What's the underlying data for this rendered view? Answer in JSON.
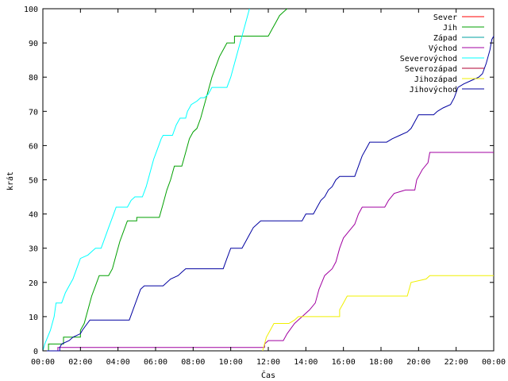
{
  "chart_data": {
    "type": "line",
    "title": "",
    "xlabel": "Čas",
    "ylabel": "krát",
    "xlim": [
      0,
      24
    ],
    "ylim": [
      0,
      100
    ],
    "x_ticks": [
      0,
      2,
      4,
      6,
      8,
      10,
      12,
      14,
      16,
      18,
      20,
      22,
      24
    ],
    "x_tick_labels": [
      "00:00",
      "02:00",
      "04:00",
      "06:00",
      "08:00",
      "10:00",
      "12:00",
      "14:00",
      "16:00",
      "18:00",
      "20:00",
      "22:00",
      "00:00"
    ],
    "y_ticks": [
      0,
      10,
      20,
      30,
      40,
      50,
      60,
      70,
      80,
      90,
      100
    ],
    "y_tick_labels": [
      "0",
      "10",
      "20",
      "30",
      "40",
      "50",
      "60",
      "70",
      "80",
      "90",
      "100"
    ],
    "grid": false,
    "legend_position": "top-right",
    "series": [
      {
        "name": "Sever",
        "color": "#ff0000",
        "points": []
      },
      {
        "name": "Jih",
        "color": "#00a000",
        "points": [
          [
            0,
            0
          ],
          [
            0.3,
            0
          ],
          [
            0.3,
            2
          ],
          [
            1.1,
            2
          ],
          [
            1.1,
            4
          ],
          [
            2.0,
            4
          ],
          [
            2.0,
            6
          ],
          [
            2.2,
            8
          ],
          [
            2.4,
            12
          ],
          [
            2.6,
            16
          ],
          [
            2.8,
            19
          ],
          [
            3.0,
            22
          ],
          [
            3.5,
            22
          ],
          [
            3.7,
            24
          ],
          [
            3.9,
            28
          ],
          [
            4.1,
            32
          ],
          [
            4.3,
            35
          ],
          [
            4.5,
            38
          ],
          [
            5.0,
            38
          ],
          [
            5.0,
            39
          ],
          [
            6.2,
            39
          ],
          [
            6.4,
            43
          ],
          [
            6.6,
            47
          ],
          [
            6.8,
            50
          ],
          [
            7.0,
            54
          ],
          [
            7.4,
            54
          ],
          [
            7.6,
            58
          ],
          [
            7.8,
            62
          ],
          [
            8.0,
            64
          ],
          [
            8.2,
            65
          ],
          [
            8.4,
            68
          ],
          [
            8.6,
            72
          ],
          [
            8.8,
            76
          ],
          [
            9.0,
            80
          ],
          [
            9.2,
            83
          ],
          [
            9.4,
            86
          ],
          [
            9.6,
            88
          ],
          [
            9.8,
            90
          ],
          [
            10.2,
            90
          ],
          [
            10.2,
            92
          ],
          [
            12.0,
            92
          ],
          [
            12.2,
            94
          ],
          [
            12.4,
            96
          ],
          [
            12.6,
            98
          ],
          [
            12.8,
            99
          ],
          [
            13.0,
            100
          ]
        ]
      },
      {
        "name": "Západ",
        "color": "#00a0a0",
        "points": []
      },
      {
        "name": "Východ",
        "color": "#a000a0",
        "points": [
          [
            0,
            0
          ],
          [
            0.8,
            0
          ],
          [
            0.8,
            1
          ],
          [
            11.8,
            1
          ],
          [
            11.8,
            2
          ],
          [
            12.0,
            3
          ],
          [
            12.8,
            3
          ],
          [
            13.0,
            5
          ],
          [
            13.4,
            8
          ],
          [
            13.8,
            10
          ],
          [
            14.2,
            12
          ],
          [
            14.5,
            14
          ],
          [
            14.7,
            18
          ],
          [
            15.0,
            22
          ],
          [
            15.4,
            24
          ],
          [
            15.6,
            26
          ],
          [
            15.8,
            30
          ],
          [
            16.0,
            33
          ],
          [
            16.3,
            35
          ],
          [
            16.6,
            37
          ],
          [
            16.8,
            40
          ],
          [
            17.0,
            42
          ],
          [
            18.2,
            42
          ],
          [
            18.4,
            44
          ],
          [
            18.7,
            46
          ],
          [
            19.3,
            47
          ],
          [
            19.8,
            47
          ],
          [
            19.9,
            50
          ],
          [
            20.2,
            53
          ],
          [
            20.5,
            55
          ],
          [
            20.6,
            58
          ],
          [
            24,
            58
          ]
        ]
      },
      {
        "name": "Severovýchod",
        "color": "#00ffff",
        "points": [
          [
            0,
            0
          ],
          [
            0.1,
            2
          ],
          [
            0.4,
            6
          ],
          [
            0.6,
            10
          ],
          [
            0.7,
            14
          ],
          [
            1.0,
            14
          ],
          [
            1.2,
            17
          ],
          [
            1.4,
            19
          ],
          [
            1.6,
            21
          ],
          [
            1.8,
            24
          ],
          [
            2.0,
            27
          ],
          [
            2.4,
            28
          ],
          [
            2.6,
            29
          ],
          [
            2.8,
            30
          ],
          [
            3.1,
            30
          ],
          [
            3.3,
            33
          ],
          [
            3.5,
            36
          ],
          [
            3.7,
            39
          ],
          [
            3.9,
            42
          ],
          [
            4.5,
            42
          ],
          [
            4.7,
            44
          ],
          [
            4.9,
            45
          ],
          [
            5.3,
            45
          ],
          [
            5.5,
            48
          ],
          [
            5.7,
            52
          ],
          [
            5.9,
            56
          ],
          [
            6.1,
            59
          ],
          [
            6.3,
            62
          ],
          [
            6.4,
            63
          ],
          [
            6.9,
            63
          ],
          [
            7.1,
            66
          ],
          [
            7.3,
            68
          ],
          [
            7.6,
            68
          ],
          [
            7.7,
            70
          ],
          [
            7.9,
            72
          ],
          [
            8.2,
            73
          ],
          [
            8.4,
            74
          ],
          [
            8.6,
            74
          ],
          [
            8.8,
            75
          ],
          [
            9.0,
            77
          ],
          [
            9.8,
            77
          ],
          [
            10.0,
            80
          ],
          [
            10.2,
            84
          ],
          [
            10.4,
            88
          ],
          [
            10.6,
            92
          ],
          [
            10.8,
            96
          ],
          [
            11.0,
            100
          ]
        ]
      },
      {
        "name": "Severozápad",
        "color": "#b00030",
        "points": []
      },
      {
        "name": "Jihozápad",
        "color": "#f0f000",
        "points": [
          [
            11.7,
            0
          ],
          [
            11.9,
            4
          ],
          [
            12.1,
            6
          ],
          [
            12.3,
            8
          ],
          [
            12.9,
            8
          ],
          [
            13.1,
            8
          ],
          [
            13.4,
            9
          ],
          [
            13.6,
            10
          ],
          [
            15.8,
            10
          ],
          [
            15.8,
            12
          ],
          [
            16.0,
            14
          ],
          [
            16.2,
            16
          ],
          [
            19.4,
            16
          ],
          [
            19.6,
            20
          ],
          [
            20.4,
            21
          ],
          [
            20.6,
            22
          ],
          [
            24,
            22
          ]
        ]
      },
      {
        "name": "Jihovýchod",
        "color": "#0000a0",
        "points": [
          [
            0,
            0
          ],
          [
            0.9,
            0
          ],
          [
            0.9,
            1
          ],
          [
            1.0,
            2
          ],
          [
            1.4,
            3
          ],
          [
            1.6,
            4
          ],
          [
            2.0,
            5
          ],
          [
            2.1,
            6
          ],
          [
            2.5,
            9
          ],
          [
            4.6,
            9
          ],
          [
            4.8,
            12
          ],
          [
            5.0,
            15
          ],
          [
            5.2,
            18
          ],
          [
            5.4,
            19
          ],
          [
            6.4,
            19
          ],
          [
            6.8,
            21
          ],
          [
            7.2,
            22
          ],
          [
            7.4,
            23
          ],
          [
            7.6,
            24
          ],
          [
            9.6,
            24
          ],
          [
            9.8,
            27
          ],
          [
            10.0,
            30
          ],
          [
            10.6,
            30
          ],
          [
            10.8,
            32
          ],
          [
            11.0,
            34
          ],
          [
            11.2,
            36
          ],
          [
            11.4,
            37
          ],
          [
            11.6,
            38
          ],
          [
            13.8,
            38
          ],
          [
            14.0,
            40
          ],
          [
            14.4,
            40
          ],
          [
            14.6,
            42
          ],
          [
            14.8,
            44
          ],
          [
            15.0,
            45
          ],
          [
            15.2,
            47
          ],
          [
            15.4,
            48
          ],
          [
            15.6,
            50
          ],
          [
            15.8,
            51
          ],
          [
            16.6,
            51
          ],
          [
            16.8,
            54
          ],
          [
            17.0,
            57
          ],
          [
            17.2,
            59
          ],
          [
            17.4,
            61
          ],
          [
            18.3,
            61
          ],
          [
            18.6,
            62
          ],
          [
            19.0,
            63
          ],
          [
            19.4,
            64
          ],
          [
            19.6,
            65
          ],
          [
            19.8,
            67
          ],
          [
            20.0,
            69
          ],
          [
            20.8,
            69
          ],
          [
            21.0,
            70
          ],
          [
            21.3,
            71
          ],
          [
            21.7,
            72
          ],
          [
            21.9,
            74
          ],
          [
            22.1,
            77
          ],
          [
            22.4,
            78
          ],
          [
            22.8,
            79
          ],
          [
            23.2,
            80
          ],
          [
            23.4,
            81
          ],
          [
            23.6,
            84
          ],
          [
            23.8,
            88
          ],
          [
            23.9,
            91
          ],
          [
            24,
            92
          ]
        ]
      }
    ]
  }
}
